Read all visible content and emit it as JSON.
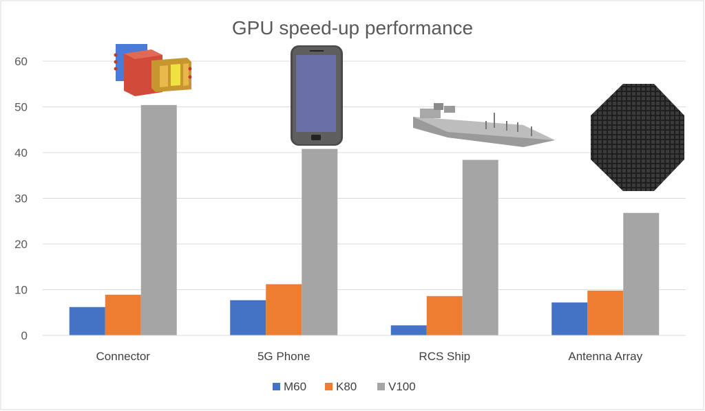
{
  "chart_data": {
    "type": "bar",
    "title": "GPU speed-up performance",
    "categories": [
      "Connector",
      "5G Phone",
      "RCS Ship",
      "Antenna Array"
    ],
    "series": [
      {
        "name": "M60",
        "color": "#4472C4",
        "values": [
          6.2,
          7.7,
          2.2,
          7.2
        ]
      },
      {
        "name": "K80",
        "color": "#ED7D31",
        "values": [
          8.9,
          11.2,
          8.6,
          9.8
        ]
      },
      {
        "name": "V100",
        "color": "#A5A5A5",
        "values": [
          50.4,
          40.8,
          38.4,
          26.8
        ]
      }
    ],
    "ylim": [
      0,
      60
    ],
    "yticks": [
      0,
      10,
      20,
      30,
      40,
      50,
      60
    ],
    "xlabel": "",
    "ylabel": "",
    "grid": true,
    "legend": "bottom-center"
  },
  "illustrations": [
    "connector-model",
    "phone-model",
    "ship-model",
    "antenna-array-model"
  ]
}
